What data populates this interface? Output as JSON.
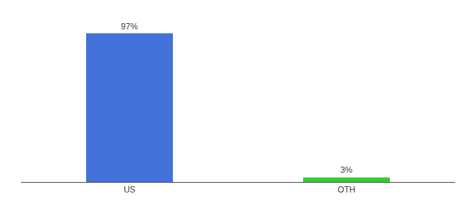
{
  "chart_data": {
    "type": "bar",
    "categories": [
      "US",
      "OTH"
    ],
    "values": [
      97,
      3
    ],
    "value_labels": [
      "97%",
      "3%"
    ],
    "colors": [
      "#4472db",
      "#33cc33"
    ],
    "ylim": [
      0,
      105
    ],
    "grid": false,
    "data_labels": true,
    "tick_labels": "x"
  }
}
